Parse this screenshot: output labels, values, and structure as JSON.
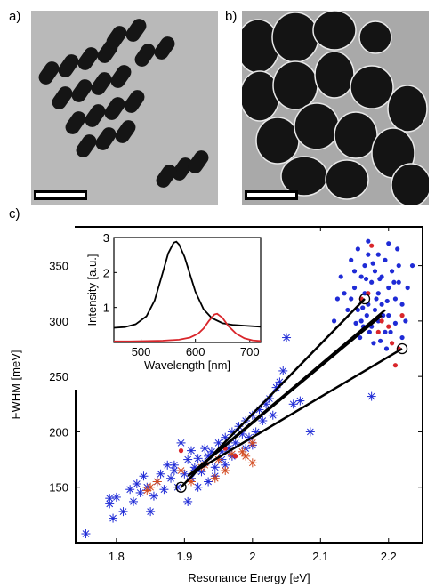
{
  "panels": {
    "a_label": "a)",
    "b_label": "b)",
    "c_label": "c)"
  },
  "colors": {
    "blue": "#1f2bd6",
    "red": "#d9262b",
    "orange_red": "#d24a20",
    "black": "#000000",
    "tem_gray": "#b7b7b7"
  },
  "chart_data": [
    {
      "type": "scatter",
      "title": "",
      "xlabel": "Resonance Energy [eV]",
      "ylabel": "FWHM [meV]",
      "xlim": [
        1.74,
        2.25
      ],
      "ylim": [
        100,
        385
      ],
      "xticks": [
        "1.8",
        "1.9",
        "2",
        "2.1",
        "2.2"
      ],
      "yticks": [
        "150",
        "200",
        "250",
        "300",
        "350"
      ],
      "grid": false,
      "series": [
        {
          "marker": "asterisk",
          "color": "#1f2bd6",
          "points": [
            [
              1.755,
              108
            ],
            [
              1.795,
              122
            ],
            [
              1.79,
              140
            ],
            [
              1.79,
              135
            ],
            [
              1.8,
              141
            ],
            [
              1.81,
              128
            ],
            [
              1.82,
              148
            ],
            [
              1.825,
              137
            ],
            [
              1.83,
              153
            ],
            [
              1.835,
              145
            ],
            [
              1.84,
              160
            ],
            [
              1.845,
              150
            ],
            [
              1.85,
              128
            ],
            [
              1.855,
              142
            ],
            [
              1.86,
              155
            ],
            [
              1.865,
              162
            ],
            [
              1.87,
              148
            ],
            [
              1.875,
              170
            ],
            [
              1.88,
              158
            ],
            [
              1.885,
              165
            ],
            [
              1.89,
              150
            ],
            [
              1.895,
              190
            ],
            [
              1.9,
              162
            ],
            [
              1.905,
              175
            ],
            [
              1.91,
              158
            ],
            [
              1.91,
              183
            ],
            [
              1.915,
              168
            ],
            [
              1.92,
              176
            ],
            [
              1.925,
              164
            ],
            [
              1.93,
              172
            ],
            [
              1.93,
              185
            ],
            [
              1.935,
              178
            ],
            [
              1.94,
              182
            ],
            [
              1.945,
              168
            ],
            [
              1.95,
              190
            ],
            [
              1.955,
              175
            ],
            [
              1.96,
              195
            ],
            [
              1.965,
              185
            ],
            [
              1.97,
              200
            ],
            [
              1.975,
              190
            ],
            [
              1.98,
              205
            ],
            [
              1.985,
              198
            ],
            [
              1.99,
              210
            ],
            [
              1.995,
              195
            ],
            [
              2.0,
              215
            ],
            [
              2.005,
              200
            ],
            [
              2.01,
              220
            ],
            [
              2.015,
              210
            ],
            [
              2.02,
              225
            ],
            [
              2.025,
              230
            ],
            [
              2.03,
              215
            ],
            [
              2.035,
              240
            ],
            [
              2.04,
              245
            ],
            [
              2.045,
              255
            ],
            [
              2.05,
              285
            ],
            [
              2.06,
              225
            ],
            [
              2.07,
              228
            ],
            [
              2.085,
              200
            ],
            [
              2.175,
              232
            ],
            [
              1.905,
              137
            ],
            [
              1.915,
              165
            ],
            [
              1.945,
              160
            ],
            [
              1.96,
              170
            ],
            [
              1.92,
              150
            ],
            [
              1.885,
              170
            ],
            [
              1.935,
              155
            ],
            [
              1.97,
              178
            ],
            [
              1.955,
              182
            ],
            [
              1.99,
              185
            ],
            [
              2.0,
              188
            ]
          ]
        },
        {
          "marker": "asterisk",
          "color": "#d24a20",
          "points": [
            [
              1.845,
              147
            ],
            [
              1.85,
              150
            ],
            [
              1.86,
              155
            ],
            [
              1.895,
              165
            ],
            [
              1.91,
              155
            ],
            [
              1.93,
              170
            ],
            [
              1.945,
              158
            ],
            [
              1.95,
              175
            ],
            [
              1.97,
              180
            ],
            [
              1.985,
              182
            ],
            [
              1.99,
              178
            ],
            [
              2.0,
              190
            ],
            [
              2.0,
              172
            ],
            [
              1.925,
              168
            ],
            [
              1.96,
              165
            ]
          ]
        },
        {
          "marker": "dot",
          "color": "#1f2bd6",
          "points": [
            [
              2.145,
              320
            ],
            [
              2.15,
              330
            ],
            [
              2.155,
              310
            ],
            [
              2.16,
              340
            ],
            [
              2.16,
              300
            ],
            [
              2.165,
              350
            ],
            [
              2.165,
              325
            ],
            [
              2.17,
              360
            ],
            [
              2.17,
              315
            ],
            [
              2.175,
              335
            ],
            [
              2.175,
              295
            ],
            [
              2.18,
              345
            ],
            [
              2.18,
              310
            ],
            [
              2.185,
              325
            ],
            [
              2.185,
              300
            ],
            [
              2.19,
              340
            ],
            [
              2.19,
              315
            ],
            [
              2.195,
              355
            ],
            [
              2.195,
              290
            ],
            [
              2.2,
              330
            ],
            [
              2.2,
              305
            ],
            [
              2.205,
              345
            ],
            [
              2.21,
              320
            ],
            [
              2.21,
              298
            ],
            [
              2.215,
              335
            ],
            [
              2.22,
              315
            ],
            [
              2.225,
              300
            ],
            [
              2.235,
              350
            ],
            [
              2.14,
              310
            ],
            [
              2.135,
              325
            ],
            [
              2.15,
              345
            ],
            [
              2.158,
              285
            ],
            [
              2.163,
              295
            ],
            [
              2.168,
              305
            ],
            [
              2.172,
              290
            ],
            [
              2.178,
              280
            ],
            [
              2.182,
              320
            ],
            [
              2.188,
              282
            ],
            [
              2.192,
              305
            ],
            [
              2.198,
              318
            ],
            [
              2.203,
              290
            ],
            [
              2.208,
              335
            ],
            [
              2.213,
              365
            ],
            [
              2.12,
              300
            ],
            [
              2.125,
              320
            ],
            [
              2.13,
              340
            ],
            [
              2.145,
              355
            ],
            [
              2.155,
              365
            ],
            [
              2.17,
              372
            ],
            [
              2.185,
              360
            ],
            [
              2.2,
              370
            ],
            [
              2.215,
              350
            ],
            [
              2.22,
              285
            ],
            [
              2.228,
              330
            ],
            [
              2.152,
              298
            ],
            [
              2.167,
              338
            ],
            [
              2.177,
              352
            ],
            [
              2.187,
              338
            ],
            [
              2.197,
              275
            ],
            [
              2.162,
              312
            ]
          ]
        },
        {
          "marker": "dot",
          "color": "#d9262b",
          "points": [
            [
              2.175,
              368
            ],
            [
              2.19,
              300
            ],
            [
              2.205,
              280
            ],
            [
              2.215,
              275
            ],
            [
              2.22,
              305
            ],
            [
              2.17,
              325
            ],
            [
              2.2,
              295
            ],
            [
              2.21,
              260
            ],
            [
              2.185,
              290
            ],
            [
              2.16,
              320
            ],
            [
              1.895,
              183
            ],
            [
              1.96,
              185
            ],
            [
              1.975,
              178
            ]
          ]
        },
        {
          "marker": "connector",
          "color": "#000000",
          "segments": [
            [
              [
                1.895,
                150
              ],
              [
                2.165,
                320
              ]
            ],
            [
              [
                1.905,
                160
              ],
              [
                2.18,
                300
              ]
            ],
            [
              [
                1.91,
                162
              ],
              [
                2.19,
                305
              ]
            ],
            [
              [
                1.92,
                166
              ],
              [
                2.22,
                275
              ]
            ],
            [
              [
                1.925,
                170
              ],
              [
                2.195,
                310
              ]
            ]
          ]
        },
        {
          "marker": "circle",
          "color": "#000000",
          "points": [
            [
              1.895,
              150
            ],
            [
              2.165,
              320
            ],
            [
              2.22,
              275
            ]
          ]
        }
      ]
    },
    {
      "type": "line",
      "title": "",
      "xlabel": "Wavelength [nm]",
      "ylabel": "Intensity [a.u.]",
      "xlim": [
        450,
        720
      ],
      "ylim": [
        0,
        3
      ],
      "xticks": [
        "500",
        "600",
        "700"
      ],
      "yticks": [
        "1",
        "2",
        "3"
      ],
      "series": [
        {
          "color": "#000000",
          "x": [
            450,
            470,
            490,
            510,
            525,
            540,
            550,
            560,
            565,
            570,
            580,
            590,
            600,
            615,
            630,
            650,
            670,
            690,
            720
          ],
          "y": [
            0.42,
            0.44,
            0.52,
            0.75,
            1.2,
            2.0,
            2.55,
            2.85,
            2.88,
            2.8,
            2.45,
            1.95,
            1.45,
            0.95,
            0.7,
            0.55,
            0.5,
            0.48,
            0.45
          ]
        },
        {
          "color": "#d9262b",
          "x": [
            450,
            480,
            510,
            540,
            570,
            590,
            605,
            615,
            625,
            635,
            640,
            650,
            660,
            675,
            690,
            705,
            720
          ],
          "y": [
            0.03,
            0.03,
            0.04,
            0.05,
            0.08,
            0.14,
            0.25,
            0.4,
            0.62,
            0.8,
            0.82,
            0.7,
            0.48,
            0.25,
            0.12,
            0.06,
            0.04
          ]
        }
      ]
    }
  ]
}
